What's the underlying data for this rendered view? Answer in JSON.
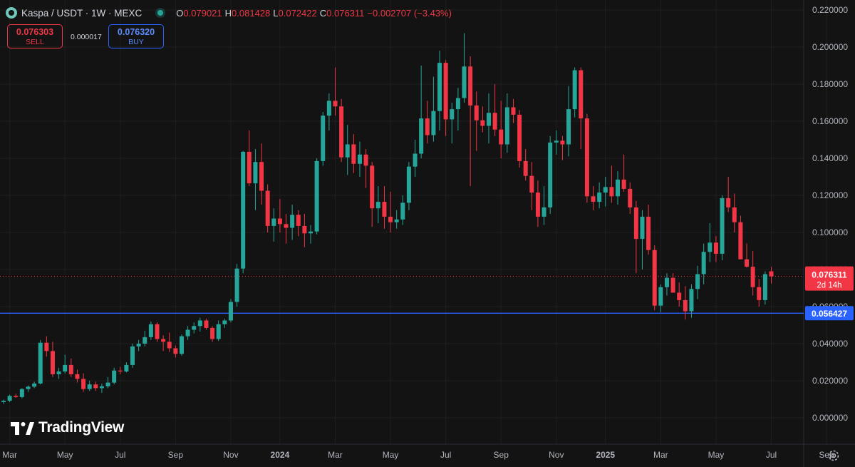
{
  "header": {
    "symbol": "Kaspa / USDT · 1W · MEXC",
    "ohlc": [
      {
        "key": "O",
        "value": "0.079021"
      },
      {
        "key": "H",
        "value": "0.081428"
      },
      {
        "key": "L",
        "value": "0.072422"
      },
      {
        "key": "C",
        "value": "0.076311"
      }
    ],
    "change": "−0.002707 (−3.43%)"
  },
  "trade": {
    "sell_price": "0.076303",
    "sell_label": "SELL",
    "spread": "0.000017",
    "buy_price": "0.076320",
    "buy_label": "BUY"
  },
  "brand": "TradingView",
  "colors": {
    "up": "#26a69a",
    "down": "#f23645",
    "line": "#2962ff",
    "bg": "#131313",
    "grid": "#1f1f1f",
    "text": "#d1d4dc"
  },
  "icons": [
    "kaspa-symbol-icon",
    "live-status-icon",
    "tradingview-logo-icon",
    "gear-icon"
  ],
  "chart_data": {
    "type": "candlestick",
    "interval": "1W",
    "ylim": [
      -0.006,
      0.224
    ],
    "y_ticks": [
      "0.220000",
      "0.200000",
      "0.180000",
      "0.160000",
      "0.140000",
      "0.120000",
      "0.100000",
      "0.080000",
      "0.060000",
      "0.040000",
      "0.020000",
      "0.000000"
    ],
    "y_tick_values": [
      0.22,
      0.2,
      0.18,
      0.16,
      0.14,
      0.12,
      0.1,
      0.08,
      0.06,
      0.04,
      0.02,
      0.0
    ],
    "x_ticks": [
      {
        "label": "Mar",
        "week": 1
      },
      {
        "label": "May",
        "week": 10
      },
      {
        "label": "Jul",
        "week": 19
      },
      {
        "label": "Sep",
        "week": 28
      },
      {
        "label": "Nov",
        "week": 37
      },
      {
        "label": "2024",
        "week": 45
      },
      {
        "label": "Mar",
        "week": 54
      },
      {
        "label": "May",
        "week": 63
      },
      {
        "label": "Jul",
        "week": 72
      },
      {
        "label": "Sep",
        "week": 81
      },
      {
        "label": "Nov",
        "week": 90
      },
      {
        "label": "2025",
        "week": 98
      },
      {
        "label": "Mar",
        "week": 107
      },
      {
        "label": "May",
        "week": 116
      },
      {
        "label": "Jul",
        "week": 125
      },
      {
        "label": "Sep",
        "week": 134
      }
    ],
    "current_price": {
      "value": 0.076311,
      "label": "0.076311",
      "countdown": "2d 14h"
    },
    "horizontal_line": {
      "value": 0.056427,
      "label": "0.056427"
    },
    "candles": [
      [
        0.0085,
        0.0098,
        0.0075,
        0.0092
      ],
      [
        0.0092,
        0.0125,
        0.0085,
        0.0118
      ],
      [
        0.0118,
        0.013,
        0.0108,
        0.0112
      ],
      [
        0.0112,
        0.016,
        0.0105,
        0.0155
      ],
      [
        0.0155,
        0.0175,
        0.014,
        0.0168
      ],
      [
        0.0168,
        0.0195,
        0.016,
        0.0185
      ],
      [
        0.0185,
        0.042,
        0.018,
        0.0405
      ],
      [
        0.0405,
        0.044,
        0.033,
        0.036
      ],
      [
        0.036,
        0.041,
        0.022,
        0.0235
      ],
      [
        0.0235,
        0.027,
        0.021,
        0.025
      ],
      [
        0.025,
        0.034,
        0.024,
        0.0285
      ],
      [
        0.0285,
        0.032,
        0.022,
        0.0235
      ],
      [
        0.0235,
        0.026,
        0.019,
        0.021
      ],
      [
        0.021,
        0.024,
        0.014,
        0.0155
      ],
      [
        0.0155,
        0.02,
        0.0145,
        0.018
      ],
      [
        0.018,
        0.0195,
        0.0145,
        0.016
      ],
      [
        0.016,
        0.0185,
        0.0135,
        0.017
      ],
      [
        0.017,
        0.022,
        0.016,
        0.019
      ],
      [
        0.019,
        0.027,
        0.018,
        0.0255
      ],
      [
        0.0255,
        0.0275,
        0.0235,
        0.025
      ],
      [
        0.025,
        0.03,
        0.0245,
        0.0285
      ],
      [
        0.0285,
        0.04,
        0.027,
        0.0385
      ],
      [
        0.0385,
        0.042,
        0.036,
        0.04
      ],
      [
        0.04,
        0.047,
        0.0385,
        0.0435
      ],
      [
        0.0435,
        0.052,
        0.042,
        0.0505
      ],
      [
        0.0505,
        0.0515,
        0.041,
        0.0425
      ],
      [
        0.0425,
        0.0445,
        0.036,
        0.041
      ],
      [
        0.041,
        0.046,
        0.0355,
        0.0375
      ],
      [
        0.0375,
        0.039,
        0.0325,
        0.0345
      ],
      [
        0.0345,
        0.045,
        0.0335,
        0.044
      ],
      [
        0.044,
        0.0495,
        0.042,
        0.0475
      ],
      [
        0.0475,
        0.0515,
        0.0455,
        0.0495
      ],
      [
        0.0495,
        0.054,
        0.0465,
        0.0525
      ],
      [
        0.0525,
        0.0535,
        0.0475,
        0.0485
      ],
      [
        0.0485,
        0.0495,
        0.041,
        0.0425
      ],
      [
        0.0425,
        0.0525,
        0.0415,
        0.0505
      ],
      [
        0.0505,
        0.0535,
        0.0485,
        0.0525
      ],
      [
        0.0525,
        0.064,
        0.0515,
        0.0625
      ],
      [
        0.0625,
        0.083,
        0.06,
        0.0805
      ],
      [
        0.0805,
        0.144,
        0.078,
        0.1435
      ],
      [
        0.1435,
        0.155,
        0.125,
        0.1265
      ],
      [
        0.1265,
        0.145,
        0.112,
        0.138
      ],
      [
        0.138,
        0.148,
        0.115,
        0.1225
      ],
      [
        0.1225,
        0.126,
        0.1,
        0.1035
      ],
      [
        0.1035,
        0.113,
        0.095,
        0.1075
      ],
      [
        0.1075,
        0.118,
        0.1,
        0.1045
      ],
      [
        0.1045,
        0.11,
        0.094,
        0.1025
      ],
      [
        0.1025,
        0.115,
        0.096,
        0.1095
      ],
      [
        0.1095,
        0.112,
        0.098,
        0.1035
      ],
      [
        0.1035,
        0.11,
        0.092,
        0.0995
      ],
      [
        0.0995,
        0.104,
        0.094,
        0.1005
      ],
      [
        0.1005,
        0.14,
        0.099,
        0.1385
      ],
      [
        0.1385,
        0.165,
        0.136,
        0.163
      ],
      [
        0.163,
        0.175,
        0.155,
        0.171
      ],
      [
        0.171,
        0.189,
        0.163,
        0.168
      ],
      [
        0.168,
        0.172,
        0.138,
        0.1405
      ],
      [
        0.1405,
        0.158,
        0.131,
        0.1475
      ],
      [
        0.1475,
        0.153,
        0.132,
        0.137
      ],
      [
        0.137,
        0.149,
        0.13,
        0.142
      ],
      [
        0.142,
        0.145,
        0.124,
        0.136
      ],
      [
        0.136,
        0.138,
        0.103,
        0.113
      ],
      [
        0.113,
        0.125,
        0.105,
        0.1165
      ],
      [
        0.1165,
        0.125,
        0.102,
        0.1085
      ],
      [
        0.1085,
        0.122,
        0.1,
        0.1055
      ],
      [
        0.1055,
        0.112,
        0.102,
        0.107
      ],
      [
        0.107,
        0.12,
        0.104,
        0.116
      ],
      [
        0.116,
        0.138,
        0.112,
        0.1355
      ],
      [
        0.1355,
        0.15,
        0.13,
        0.1425
      ],
      [
        0.1425,
        0.19,
        0.14,
        0.1615
      ],
      [
        0.1615,
        0.171,
        0.148,
        0.1525
      ],
      [
        0.1525,
        0.184,
        0.149,
        0.1655
      ],
      [
        0.1655,
        0.198,
        0.155,
        0.1915
      ],
      [
        0.1915,
        0.193,
        0.152,
        0.161
      ],
      [
        0.161,
        0.17,
        0.148,
        0.1665
      ],
      [
        0.1665,
        0.178,
        0.155,
        0.1725
      ],
      [
        0.1725,
        0.2075,
        0.17,
        0.1895
      ],
      [
        0.1895,
        0.195,
        0.125,
        0.1685
      ],
      [
        0.1685,
        0.176,
        0.144,
        0.1605
      ],
      [
        0.1605,
        0.168,
        0.154,
        0.1575
      ],
      [
        0.1575,
        0.175,
        0.148,
        0.1645
      ],
      [
        0.1645,
        0.18,
        0.152,
        0.1555
      ],
      [
        0.1555,
        0.171,
        0.14,
        0.1475
      ],
      [
        0.1475,
        0.175,
        0.143,
        0.1675
      ],
      [
        0.1675,
        0.172,
        0.159,
        0.1635
      ],
      [
        0.1635,
        0.166,
        0.135,
        0.1385
      ],
      [
        0.1385,
        0.145,
        0.128,
        0.1305
      ],
      [
        0.1305,
        0.138,
        0.112,
        0.1215
      ],
      [
        0.1215,
        0.128,
        0.103,
        0.1085
      ],
      [
        0.1085,
        0.125,
        0.104,
        0.1135
      ],
      [
        0.1135,
        0.152,
        0.11,
        0.1485
      ],
      [
        0.1485,
        0.155,
        0.142,
        0.1495
      ],
      [
        0.1495,
        0.152,
        0.139,
        0.1475
      ],
      [
        0.1475,
        0.179,
        0.141,
        0.1665
      ],
      [
        0.1665,
        0.189,
        0.162,
        0.1875
      ],
      [
        0.1875,
        0.189,
        0.145,
        0.1615
      ],
      [
        0.1615,
        0.164,
        0.116,
        0.1195
      ],
      [
        0.1195,
        0.125,
        0.112,
        0.1165
      ],
      [
        0.1165,
        0.127,
        0.113,
        0.1215
      ],
      [
        0.1215,
        0.13,
        0.114,
        0.1245
      ],
      [
        0.1245,
        0.136,
        0.116,
        0.1195
      ],
      [
        0.1195,
        0.133,
        0.115,
        0.1285
      ],
      [
        0.1285,
        0.142,
        0.122,
        0.1235
      ],
      [
        0.1235,
        0.127,
        0.11,
        0.1135
      ],
      [
        0.1135,
        0.117,
        0.078,
        0.0965
      ],
      [
        0.0965,
        0.112,
        0.08,
        0.1085
      ],
      [
        0.1085,
        0.115,
        0.088,
        0.0905
      ],
      [
        0.0905,
        0.093,
        0.058,
        0.0605
      ],
      [
        0.0605,
        0.072,
        0.057,
        0.0705
      ],
      [
        0.0705,
        0.078,
        0.066,
        0.0755
      ],
      [
        0.0755,
        0.078,
        0.068,
        0.0675
      ],
      [
        0.0675,
        0.073,
        0.06,
        0.0635
      ],
      [
        0.0635,
        0.071,
        0.053,
        0.0575
      ],
      [
        0.0575,
        0.072,
        0.054,
        0.0695
      ],
      [
        0.0695,
        0.082,
        0.064,
        0.0775
      ],
      [
        0.0775,
        0.094,
        0.072,
        0.0895
      ],
      [
        0.0895,
        0.105,
        0.084,
        0.0945
      ],
      [
        0.0945,
        0.098,
        0.084,
        0.0885
      ],
      [
        0.0885,
        0.12,
        0.085,
        0.1185
      ],
      [
        0.1185,
        0.13,
        0.111,
        0.1135
      ],
      [
        0.1135,
        0.121,
        0.1,
        0.1055
      ],
      [
        0.1055,
        0.109,
        0.086,
        0.0855
      ],
      [
        0.0855,
        0.094,
        0.081,
        0.0815
      ],
      [
        0.0815,
        0.09,
        0.066,
        0.0705
      ],
      [
        0.0705,
        0.075,
        0.06,
        0.0635
      ],
      [
        0.0635,
        0.079,
        0.061,
        0.0775
      ],
      [
        0.079021,
        0.081428,
        0.072422,
        0.076311
      ]
    ]
  }
}
